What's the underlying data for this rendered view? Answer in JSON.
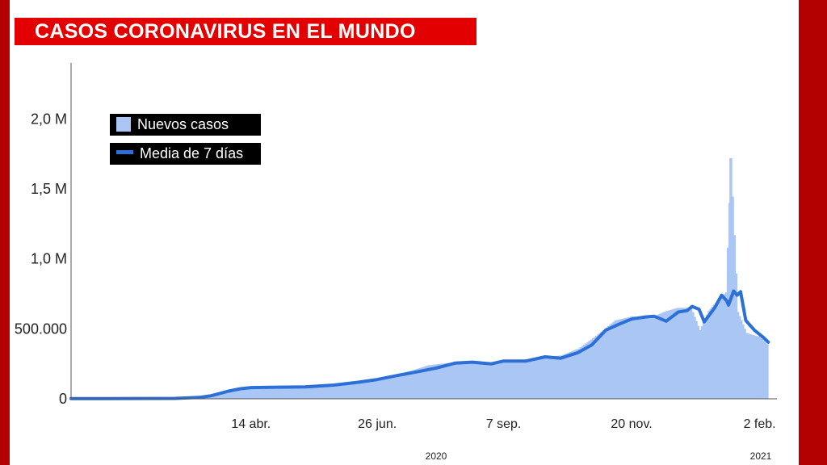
{
  "header": {
    "title": "CASOS CORONAVIRUS EN EL MUNDO"
  },
  "colors": {
    "frame": "#b30000",
    "title_bg": "#e30000",
    "bars": "#aac6f5",
    "line": "#2c6fd6"
  },
  "chart_data": {
    "type": "bar",
    "title": "CASOS CORONAVIRUS EN EL MUNDO",
    "xlabel": "",
    "ylabel": "",
    "grid": false,
    "legend_position": "top-left",
    "ylim": [
      0,
      2400000
    ],
    "xlim": [
      "2020-01-01",
      "2021-02-12"
    ],
    "y_ticks": [
      {
        "value": 0,
        "label": "0"
      },
      {
        "value": 500000,
        "label": "500.000"
      },
      {
        "value": 1000000,
        "label": "1,0 M"
      },
      {
        "value": 1500000,
        "label": "1,5 M"
      },
      {
        "value": 2000000,
        "label": "2,0 M"
      }
    ],
    "x_ticks": [
      {
        "date": "2020-04-14",
        "label": "14 abr."
      },
      {
        "date": "2020-06-26",
        "label": "26 jun."
      },
      {
        "date": "2020-09-07",
        "label": "7 sep."
      },
      {
        "date": "2020-11-20",
        "label": "20 nov."
      },
      {
        "date": "2021-02-02",
        "label": "2 feb."
      }
    ],
    "year_labels": [
      {
        "date": "2020-07-30",
        "label": "2020"
      },
      {
        "date": "2021-02-06",
        "label": "2021"
      }
    ],
    "series": [
      {
        "name": "Nuevos casos",
        "type": "bar",
        "x": [
          "2020-01-15",
          "2020-02-15",
          "2020-03-15",
          "2020-03-22",
          "2020-04-01",
          "2020-04-10",
          "2020-04-20",
          "2020-05-05",
          "2020-05-20",
          "2020-06-05",
          "2020-06-15",
          "2020-06-26",
          "2020-07-05",
          "2020-07-15",
          "2020-07-25",
          "2020-08-05",
          "2020-08-15",
          "2020-08-28",
          "2020-09-07",
          "2020-09-18",
          "2020-09-30",
          "2020-10-10",
          "2020-10-20",
          "2020-10-30",
          "2020-11-10",
          "2020-11-20",
          "2020-11-30",
          "2020-12-08",
          "2020-12-16",
          "2020-12-24",
          "2020-12-29",
          "2021-01-03",
          "2021-01-08",
          "2021-01-13",
          "2021-01-16",
          "2021-01-20",
          "2021-01-25",
          "2021-02-02",
          "2021-02-06"
        ],
        "values": [
          2000,
          4000,
          10000,
          25000,
          55000,
          75000,
          80000,
          80000,
          90000,
          110000,
          130000,
          140000,
          170000,
          200000,
          240000,
          255000,
          255000,
          260000,
          260000,
          280000,
          300000,
          310000,
          360000,
          450000,
          560000,
          590000,
          575000,
          620000,
          650000,
          650000,
          490000,
          630000,
          700000,
          760000,
          1720000,
          620000,
          470000,
          440000,
          390000
        ]
      },
      {
        "name": "Media de 7 días",
        "type": "line",
        "x": [
          "2020-01-01",
          "2020-03-01",
          "2020-03-15",
          "2020-03-22",
          "2020-04-01",
          "2020-04-08",
          "2020-04-14",
          "2020-04-25",
          "2020-05-15",
          "2020-06-01",
          "2020-06-15",
          "2020-06-26",
          "2020-07-08",
          "2020-07-20",
          "2020-07-30",
          "2020-08-10",
          "2020-08-20",
          "2020-08-31",
          "2020-09-07",
          "2020-09-20",
          "2020-10-01",
          "2020-10-10",
          "2020-10-20",
          "2020-10-28",
          "2020-11-05",
          "2020-11-13",
          "2020-11-20",
          "2020-11-28",
          "2020-12-03",
          "2020-12-10",
          "2020-12-17",
          "2020-12-22",
          "2020-12-25",
          "2020-12-29",
          "2021-01-01",
          "2021-01-07",
          "2021-01-11",
          "2021-01-14",
          "2021-01-15",
          "2021-01-18",
          "2021-01-20",
          "2021-01-22",
          "2021-01-25",
          "2021-01-30",
          "2021-02-04",
          "2021-02-07"
        ],
        "values": [
          1000,
          3000,
          10000,
          22000,
          55000,
          72000,
          80000,
          82000,
          85000,
          98000,
          118000,
          138000,
          168000,
          195000,
          220000,
          255000,
          262000,
          250000,
          270000,
          270000,
          300000,
          290000,
          330000,
          385000,
          490000,
          535000,
          570000,
          585000,
          590000,
          555000,
          620000,
          630000,
          660000,
          640000,
          550000,
          650000,
          740000,
          700000,
          670000,
          770000,
          740000,
          765000,
          560000,
          490000,
          440000,
          405000
        ]
      }
    ]
  },
  "legend": {
    "items": [
      {
        "label": "Nuevos casos"
      },
      {
        "label": "Media de 7 días"
      }
    ]
  }
}
